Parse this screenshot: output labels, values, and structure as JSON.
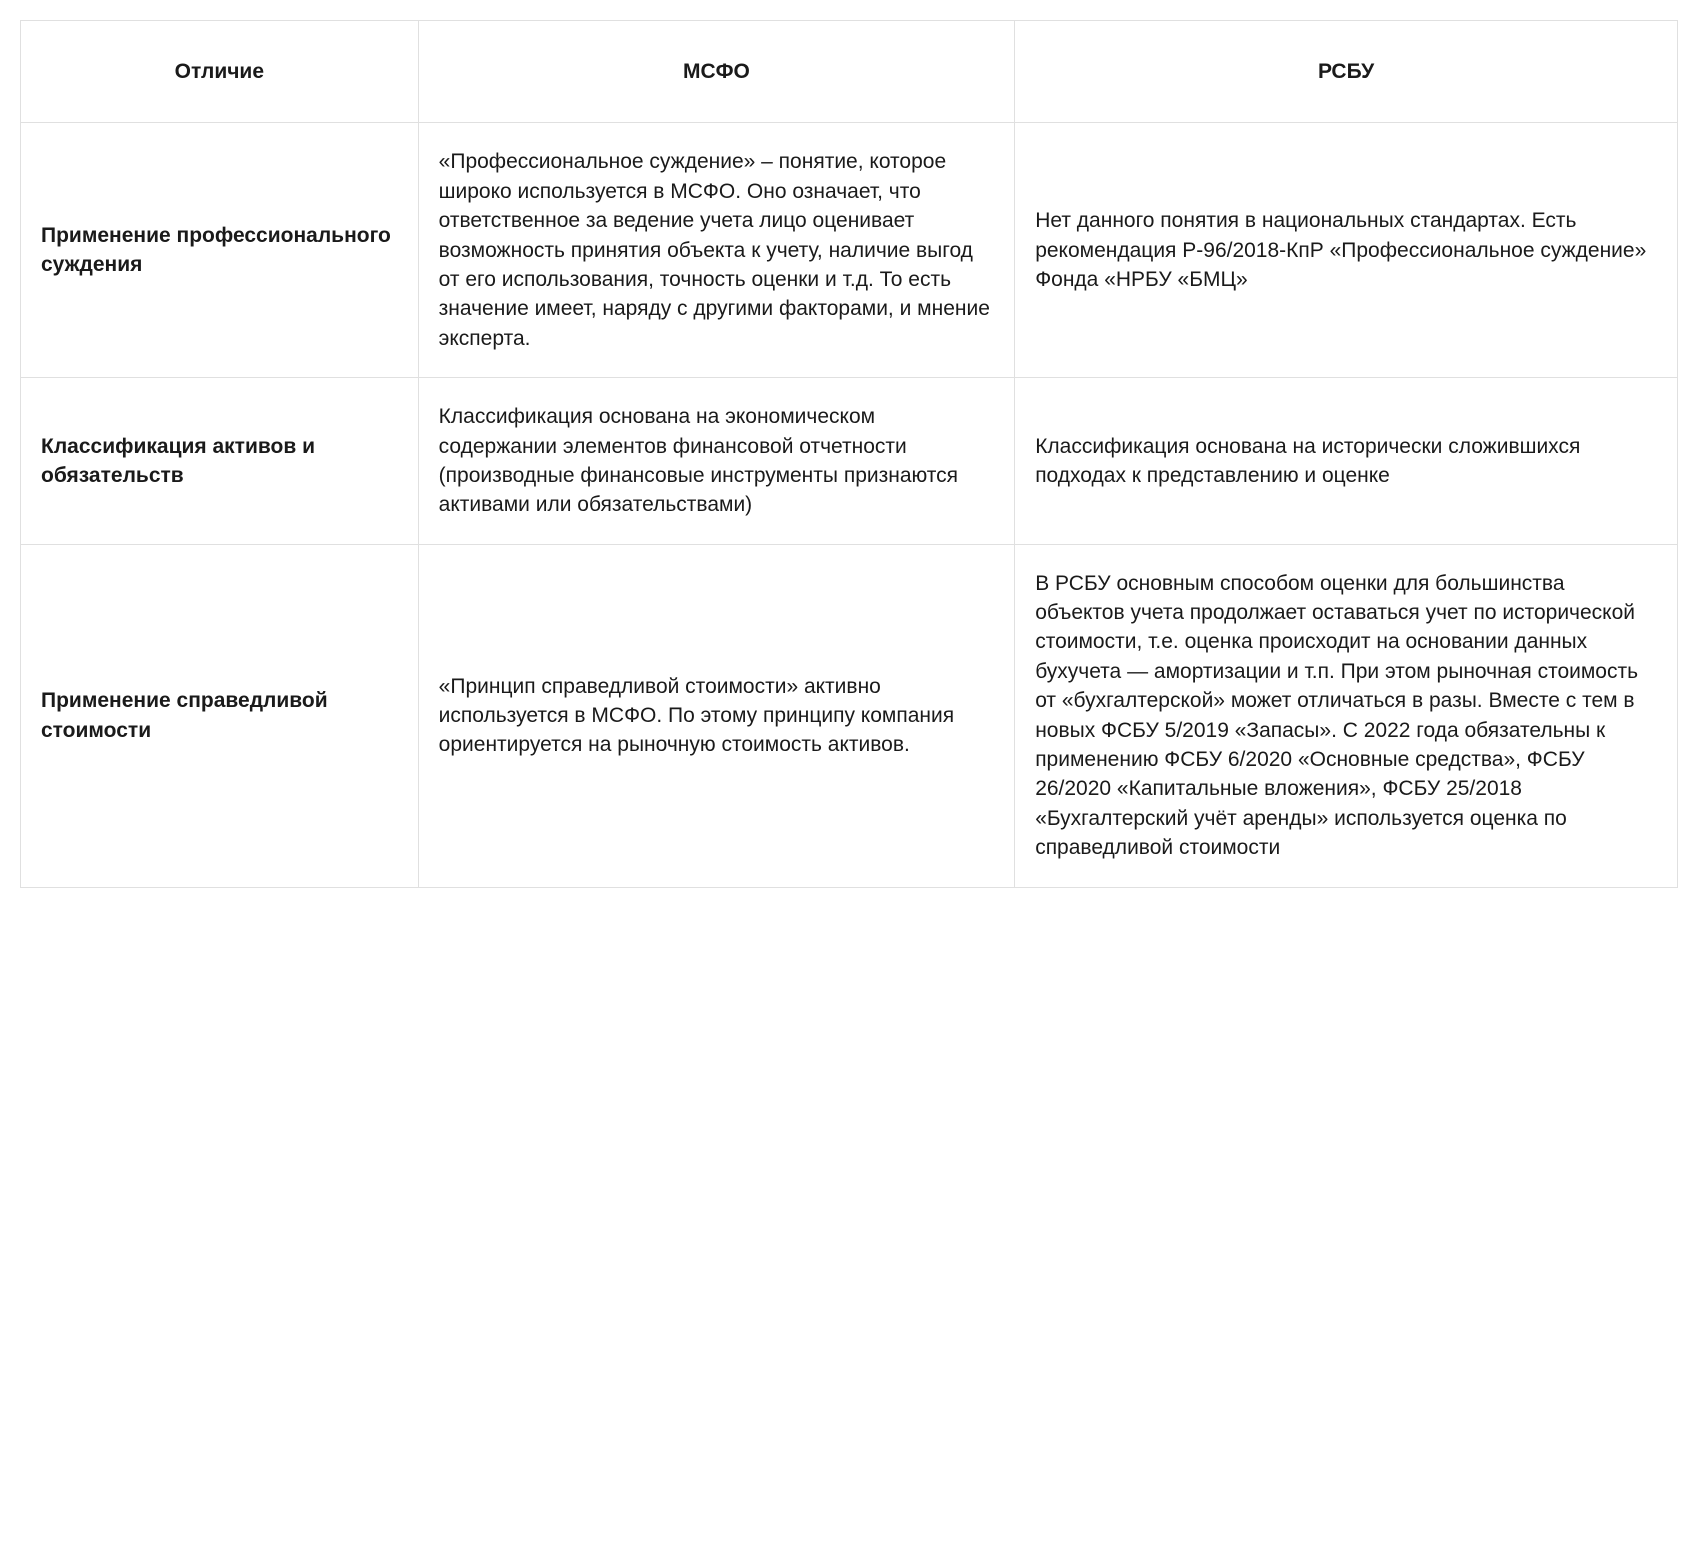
{
  "table": {
    "columns": [
      {
        "label": "Отличие",
        "width": "24%"
      },
      {
        "label": "МСФО",
        "width": "36%"
      },
      {
        "label": "РСБУ",
        "width": "40%"
      }
    ],
    "rows": [
      {
        "label": "Применение профессионального суждения",
        "msfo": "«Профессиональное суждение» – понятие, которое широко используется в МСФО. Оно означает, что ответственное за ведение учета лицо оценивает возможность принятия объекта к учету, наличие выгод от его использования, точность оценки и т.д. То есть значение имеет, наряду с другими факторами, и мнение эксперта.",
        "rsbu": "Нет данного понятия в национальных стандартах. Есть рекомендация Р-96/2018-КпР «Профессиональное суждение» Фонда «НРБУ «БМЦ»"
      },
      {
        "label": "Классификация активов и обязательств",
        "msfo": "Классификация основана на экономическом содержании элементов финансовой отчетности (производные финансовые инструменты признаются активами или обязательствами)",
        "rsbu": "Классификация основана на исторически сложившихся подходах к представлению и оценке"
      },
      {
        "label": "Применение справедливой стоимости",
        "msfo": "«Принцип справедливой стоимости» активно используется в МСФО. По этому принципу компания ориентируется на рыночную стоимость активов.",
        "rsbu": "В РСБУ основным способом оценки для большинства объектов учета продолжает оставаться учет по исторической стоимости, т.е. оценка происходит на основании данных бухучета — амортизации и т.п. При этом рыночная стоимость от «бухгалтерской» может отличаться в разы. Вместе с тем в новых ФСБУ 5/2019 «Запасы». С 2022 года обязательны к применению ФСБУ 6/2020 «Основные средства», ФСБУ 26/2020 «Капитальные вложения», ФСБУ 25/2018 «Бухгалтерский учёт аренды» используется оценка по справедливой стоимости"
      }
    ],
    "styling": {
      "border_color": "#e0e0e0",
      "background_color": "#ffffff",
      "text_color": "#1a1a1a",
      "font_family": "Arial, Helvetica, sans-serif",
      "cell_font_size": 21,
      "header_font_weight": 700,
      "row_label_font_weight": 700,
      "line_height": 1.4,
      "cell_padding": "24px 20px",
      "header_padding": "36px 20px"
    }
  }
}
